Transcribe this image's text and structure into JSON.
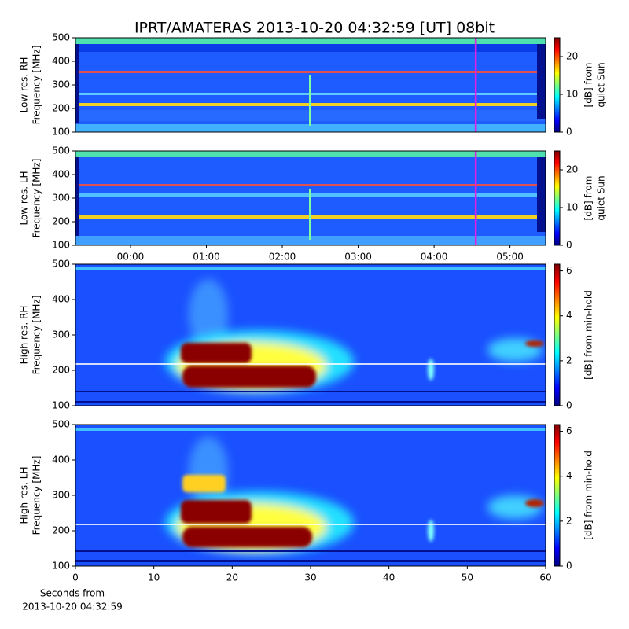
{
  "chart_data": [
    {
      "type": "heatmap",
      "title": "IPRT/AMATERAS 2013-10-20 04:32:59 [UT]   08bit",
      "ylabel": [
        "Low res. RH",
        "Frequency [MHz]"
      ],
      "ylim": [
        100,
        500
      ],
      "yticks": [
        100,
        200,
        300,
        400,
        500
      ],
      "xlim": [
        -0.725,
        5.47
      ],
      "colorbar_label": [
        "[dB] from",
        "quiet Sun"
      ],
      "clim": [
        0,
        25
      ],
      "cticks": [
        0,
        10,
        20
      ],
      "colormap": [
        "#00007f",
        "#0000ff",
        "#007fff",
        "#00ffff",
        "#7fff7f",
        "#ffff00",
        "#ff7f00",
        "#ff0000",
        "#7f0000"
      ],
      "vline_x": 4.5497,
      "vline_color": "#e020e0"
    },
    {
      "type": "heatmap",
      "ylabel": [
        "Low res. LH",
        "Frequency [MHz]"
      ],
      "ylim": [
        100,
        500
      ],
      "yticks": [
        100,
        200,
        300,
        400,
        500
      ],
      "xlim": [
        -0.725,
        5.47
      ],
      "xticks": [
        {
          "value": 0,
          "label": "00:00"
        },
        {
          "value": 1,
          "label": "01:00"
        },
        {
          "value": 2,
          "label": "02:00"
        },
        {
          "value": 3,
          "label": "03:00"
        },
        {
          "value": 4,
          "label": "04:00"
        },
        {
          "value": 5,
          "label": "05:00"
        }
      ],
      "colorbar_label": [
        "[dB] from",
        "quiet Sun"
      ],
      "clim": [
        0,
        25
      ],
      "cticks": [
        0,
        10,
        20
      ],
      "colormap": [
        "#00007f",
        "#0000ff",
        "#007fff",
        "#00ffff",
        "#7fff7f",
        "#ffff00",
        "#ff7f00",
        "#ff0000",
        "#7f0000"
      ],
      "vline_x": 4.5497,
      "vline_color": "#e020e0"
    },
    {
      "type": "heatmap",
      "ylabel": [
        "High res. RH",
        "Frequency [MHz]"
      ],
      "ylim": [
        100,
        500
      ],
      "yticks": [
        100,
        200,
        300,
        400,
        500
      ],
      "xlim": [
        0,
        60
      ],
      "colorbar_label": [
        "[dB] from min-hold"
      ],
      "clim": [
        0,
        6.3
      ],
      "cticks": [
        0,
        2,
        4,
        6
      ],
      "colormap": [
        "#00007f",
        "#0000ff",
        "#007fff",
        "#00ffff",
        "#7fff7f",
        "#ffff00",
        "#ff7f00",
        "#ff0000",
        "#7f0000"
      ]
    },
    {
      "type": "heatmap",
      "ylabel": [
        "High res. LH",
        "Frequency [MHz]"
      ],
      "ylim": [
        100,
        500
      ],
      "yticks": [
        100,
        200,
        300,
        400,
        500
      ],
      "xlim": [
        0,
        60
      ],
      "xticks": [
        0,
        10,
        20,
        30,
        40,
        50,
        60
      ],
      "xlabel": [
        "Seconds from",
        "2013-10-20 04:32:59"
      ],
      "colorbar_label": [
        "[dB] from min-hold"
      ],
      "clim": [
        0,
        6.3
      ],
      "cticks": [
        0,
        2,
        4,
        6
      ],
      "colormap": [
        "#00007f",
        "#0000ff",
        "#007fff",
        "#00ffff",
        "#7fff7f",
        "#ffff00",
        "#ff7f00",
        "#ff0000",
        "#7f0000"
      ]
    }
  ]
}
